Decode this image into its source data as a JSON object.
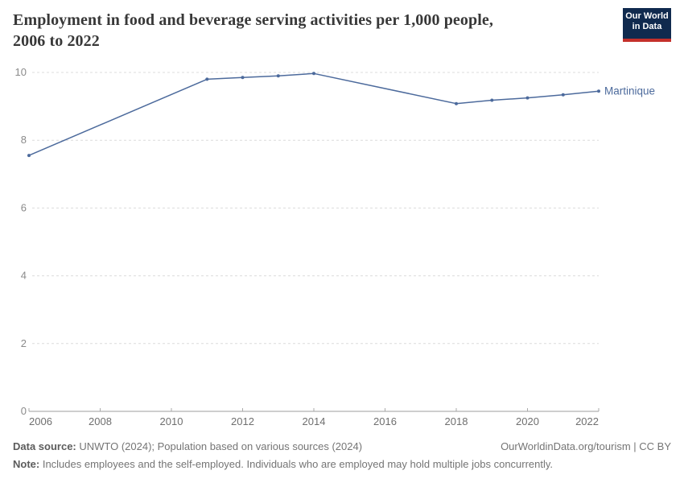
{
  "header": {
    "title_line1": "Employment in food and beverage serving activities per 1,000 people,",
    "title_line2": "2006 to 2022"
  },
  "logo": {
    "line1": "Our World",
    "line2": "in Data",
    "bg_color": "#102a4e",
    "bar_color": "#c4302b"
  },
  "chart_data": {
    "type": "line",
    "title": "Employment in food and beverage serving activities per 1,000 people, 2006 to 2022",
    "xlabel": "",
    "ylabel": "",
    "xlim": [
      2006,
      2022
    ],
    "ylim": [
      0,
      10
    ],
    "x_ticks": [
      2006,
      2008,
      2010,
      2012,
      2014,
      2016,
      2018,
      2020,
      2022
    ],
    "y_ticks": [
      0,
      2,
      4,
      6,
      8,
      10
    ],
    "grid": "horizontal-dashed",
    "legend_position": "end-of-line-label",
    "series": [
      {
        "name": "Martinique",
        "color": "#4c6a9c",
        "points": [
          {
            "x": 2006,
            "y": 7.55
          },
          {
            "x": 2011,
            "y": 9.8
          },
          {
            "x": 2012,
            "y": 9.85
          },
          {
            "x": 2013,
            "y": 9.9
          },
          {
            "x": 2014,
            "y": 9.97
          },
          {
            "x": 2018,
            "y": 9.08
          },
          {
            "x": 2019,
            "y": 9.18
          },
          {
            "x": 2020,
            "y": 9.25
          },
          {
            "x": 2021,
            "y": 9.34
          },
          {
            "x": 2022,
            "y": 9.45
          }
        ]
      }
    ],
    "style": {
      "grid_color": "#dcdcdc",
      "axis_color": "#9e9e9e",
      "tick_color": "#aaaaaa",
      "y_label_color": "#8a8a8a",
      "x_label_color": "#6f6f6f"
    }
  },
  "footer": {
    "datasource_label": "Data source:",
    "datasource_text": " UNWTO (2024); Population based on various sources (2024)",
    "link_text": "OurWorldinData.org/tourism | CC BY",
    "note_label": "Note:",
    "note_text": " Includes employees and the self-employed. Individuals who are employed may hold multiple jobs concurrently."
  }
}
